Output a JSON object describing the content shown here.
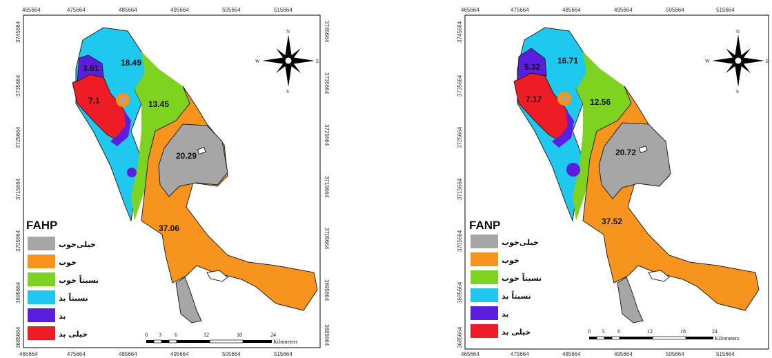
{
  "maps": [
    {
      "title": "FAHP",
      "x_ticks": [
        "465664",
        "475664",
        "485664",
        "495664",
        "505664",
        "515664"
      ],
      "y_ticks": [
        "3745664",
        "3735664",
        "3725664",
        "3715664",
        "3705664",
        "3695664",
        "3685664"
      ],
      "zones": [
        {
          "name": "very-good",
          "value": "20.29"
        },
        {
          "name": "good",
          "value": "37.06"
        },
        {
          "name": "relatively-good",
          "value": "13.45"
        },
        {
          "name": "relatively-bad",
          "value": "18.49"
        },
        {
          "name": "bad",
          "value": "3.61"
        },
        {
          "name": "very-bad",
          "value": "7.1"
        }
      ]
    },
    {
      "title": "FANP",
      "x_ticks": [
        "465664",
        "475664",
        "485664",
        "495664",
        "505664",
        "515664"
      ],
      "y_ticks": [
        "3745664",
        "3735664",
        "3725664",
        "3715664",
        "3705664",
        "3695664",
        "3685664"
      ],
      "zones": [
        {
          "name": "very-good",
          "value": "20.72"
        },
        {
          "name": "good",
          "value": "37.52"
        },
        {
          "name": "relatively-good",
          "value": "12.56"
        },
        {
          "name": "relatively-bad",
          "value": "16.71"
        },
        {
          "name": "bad",
          "value": "5.32"
        },
        {
          "name": "very-bad",
          "value": "7.17"
        }
      ]
    }
  ],
  "legend": [
    {
      "label": "خیلی‌خوب",
      "color": "#a6a6a6"
    },
    {
      "label": "خوب",
      "color": "#f7941d"
    },
    {
      "label": "نسبتاً خوب",
      "color": "#7ed321"
    },
    {
      "label": "نسبتاً بد",
      "color": "#1ec8ee"
    },
    {
      "label": "بد",
      "color": "#5b1ee0"
    },
    {
      "label": "خیلی بد",
      "color": "#ee1c24"
    }
  ],
  "scale_bar": {
    "ticks": [
      "0",
      "3",
      "6",
      "12",
      "18",
      "24"
    ],
    "unit": "Kilometers"
  },
  "compass": {
    "n": "N",
    "s": "S",
    "e": "E",
    "w": "W"
  }
}
